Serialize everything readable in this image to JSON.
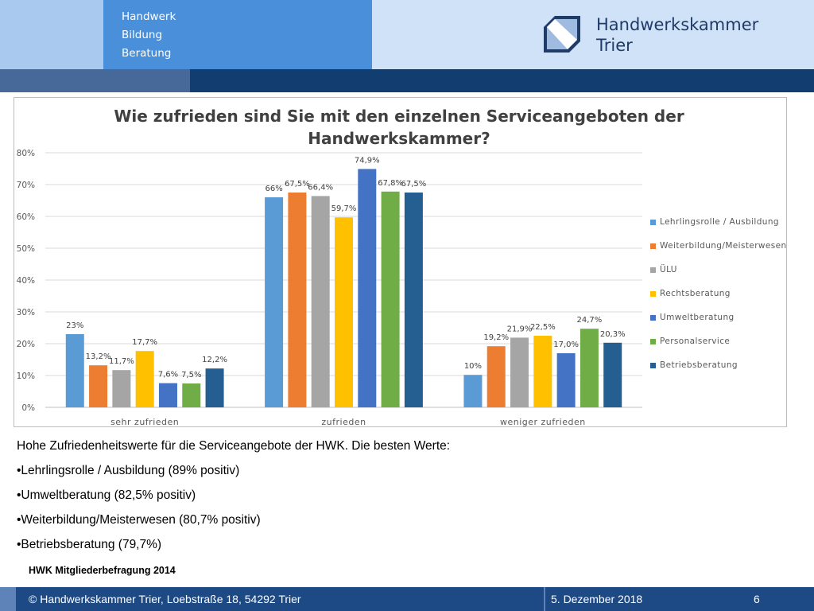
{
  "header": {
    "tagline": [
      "Handwerk",
      "Bildung",
      "Beratung"
    ],
    "brand_line1": "Handwerkskammer",
    "brand_line2": "Trier"
  },
  "chart_data": {
    "type": "bar",
    "title": "Wie zufrieden sind Sie mit den einzelnen Serviceangeboten der Handwerkskammer?",
    "categories": [
      "sehr zufrieden",
      "zufrieden",
      "weniger zufrieden"
    ],
    "ylim": [
      0,
      80
    ],
    "yticks": [
      "0%",
      "10%",
      "20%",
      "30%",
      "40%",
      "50%",
      "60%",
      "70%",
      "80%"
    ],
    "grid": true,
    "legend_position": "right",
    "series": [
      {
        "name": "Lehrlingsrolle / Ausbildung",
        "color": "#5b9bd5",
        "values": [
          23,
          66,
          10.2
        ],
        "labels": [
          "23%",
          "66%",
          "10%"
        ]
      },
      {
        "name": "Weiterbildung/Meisterwesen",
        "color": "#ed7d31",
        "values": [
          13.2,
          67.5,
          19.2
        ],
        "labels": [
          "13,2%",
          "67,5%",
          "19,2%"
        ]
      },
      {
        "name": "ÜLU",
        "color": "#a5a5a5",
        "values": [
          11.7,
          66.4,
          21.9
        ],
        "labels": [
          "11,7%",
          "66,4%",
          "21,9%"
        ]
      },
      {
        "name": "Rechtsberatung",
        "color": "#ffc000",
        "values": [
          17.7,
          59.7,
          22.5
        ],
        "labels": [
          "17,7%",
          "59,7%",
          "22,5%"
        ]
      },
      {
        "name": "Umweltberatung",
        "color": "#4472c4",
        "values": [
          7.6,
          74.9,
          17.0
        ],
        "labels": [
          "7,6%",
          "74,9%",
          "17,0%"
        ]
      },
      {
        "name": "Personalservice",
        "color": "#70ad47",
        "values": [
          7.5,
          67.8,
          24.7
        ],
        "labels": [
          "7,5%",
          "67,8%",
          "24,7%"
        ]
      },
      {
        "name": "Betriebsberatung",
        "color": "#255e91",
        "values": [
          12.2,
          67.5,
          20.3
        ],
        "labels": [
          "12,2%",
          "67,5%",
          "20,3%"
        ]
      }
    ]
  },
  "notes": [
    "Hohe Zufriedenheitswerte für die Serviceangebote der HWK.  Die besten Werte:",
    "•Lehrlingsrolle / Ausbildung (89% positiv)",
    "•Umweltberatung (82,5% positiv)",
    "•Weiterbildung/Meisterwesen (80,7% positiv)",
    "•Betriebsberatung (79,7%)"
  ],
  "source": "HWK Mitgliederbefragung 2014",
  "footer": {
    "copyright": "© Handwerkskammer Trier, Loebstraße 18, 54292 Trier",
    "date": "5. Dezember 2018",
    "page": "6"
  }
}
